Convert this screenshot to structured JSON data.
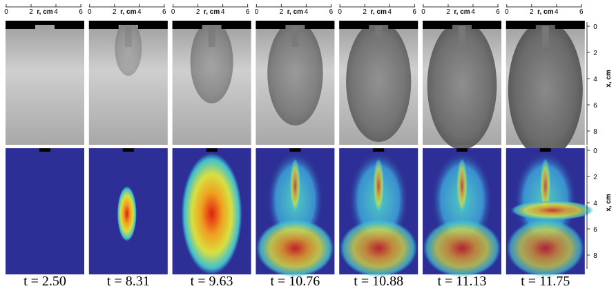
{
  "top_axis": {
    "label": "r, cm",
    "ticks": [
      0,
      2,
      4,
      6
    ]
  },
  "right_axis": {
    "label": "x, cm",
    "ticks": [
      0,
      2,
      4,
      6,
      8
    ]
  },
  "panels": [
    {
      "label": "t = 2.50"
    },
    {
      "label": "t = 8.31"
    },
    {
      "label": "t = 9.63"
    },
    {
      "label": "t = 10.76"
    },
    {
      "label": "t = 10.88"
    },
    {
      "label": "t = 11.13"
    },
    {
      "label": "t = 11.75"
    }
  ]
}
